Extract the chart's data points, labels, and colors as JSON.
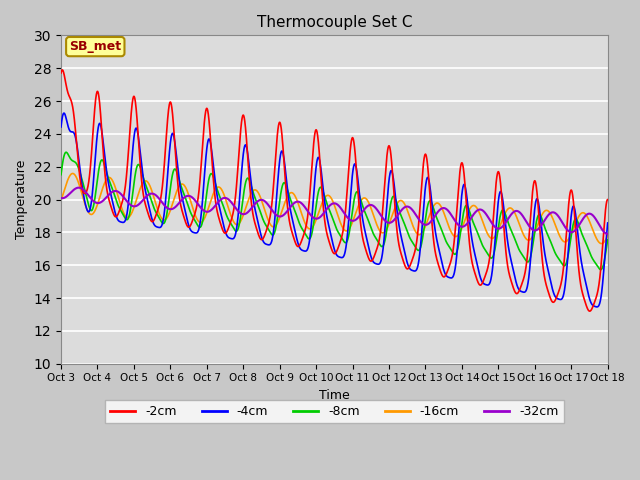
{
  "title": "Thermocouple Set C",
  "xlabel": "Time",
  "ylabel": "Temperature",
  "ylim": [
    10,
    30
  ],
  "yticks": [
    10,
    12,
    14,
    16,
    18,
    20,
    22,
    24,
    26,
    28,
    30
  ],
  "x_labels": [
    "Oct 3",
    "Oct 4",
    "Oct 5",
    "Oct 6",
    "Oct 7",
    "Oct 8",
    "Oct 9",
    "Oct 10",
    "Oct 11",
    "Oct 12",
    "Oct 13",
    "Oct 14",
    "Oct 15",
    "Oct 16",
    "Oct 17",
    "Oct 18"
  ],
  "legend_labels": [
    "-2cm",
    "-4cm",
    "-8cm",
    "-16cm",
    "-32cm"
  ],
  "line_colors": [
    "#ff0000",
    "#0000ff",
    "#00cc00",
    "#ff9900",
    "#9900cc"
  ],
  "line_widths": [
    1.2,
    1.2,
    1.2,
    1.2,
    1.5
  ],
  "plot_bg_color": "#dcdcdc",
  "fig_bg_color": "#c8c8c8",
  "annotation_text": "SB_met",
  "annotation_bg": "#ffff99",
  "annotation_border": "#aa8800"
}
